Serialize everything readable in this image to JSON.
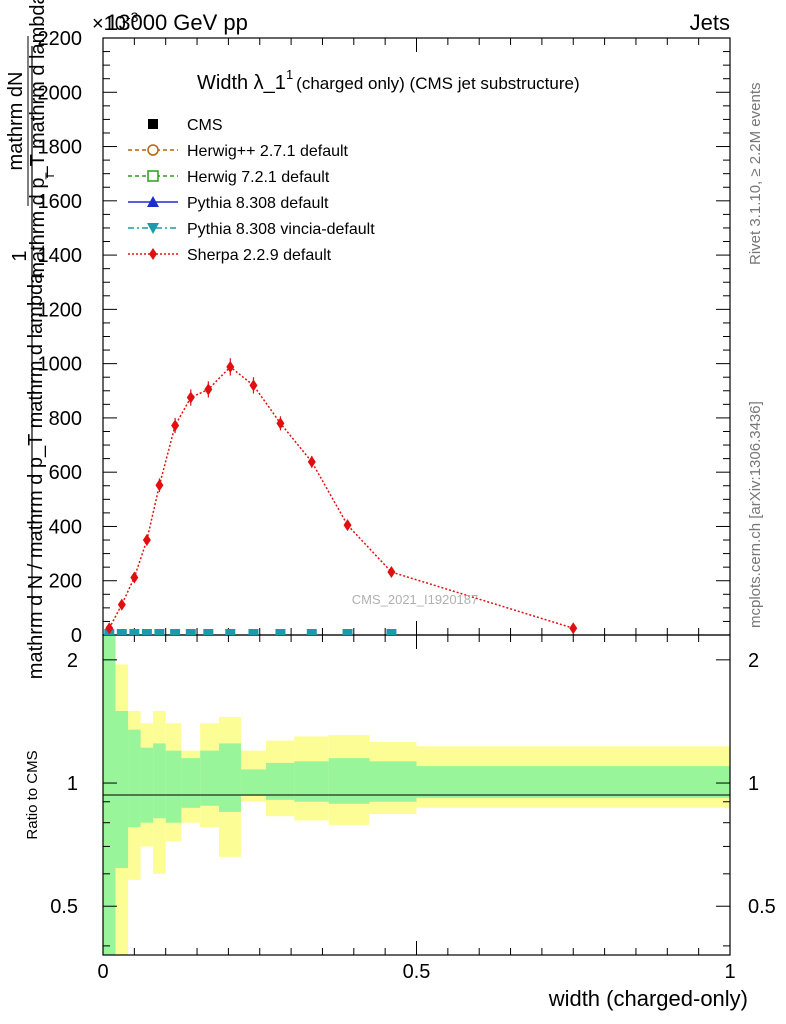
{
  "header": {
    "energy": "13000 GeV pp",
    "process": "Jets",
    "exponent": "×10",
    "exponent_power": "-3"
  },
  "side_text": {
    "rivet": "Rivet 3.1.10, ≥ 2.2M events",
    "mcplots": "mcplots.cern.ch [arXiv:1306.3436]"
  },
  "chart_data": {
    "type": "scatter",
    "title": "Width λ_1",
    "title_superscript": "1",
    "title_suffix": "(charged only) (CMS jet substructure)",
    "watermark": "CMS_2021_I1920187",
    "ylabel_top_num": "mathrm dN",
    "ylabel_top_den": "mathrm d p_T mathrm d lambda",
    "ylabel_sub_T": "T",
    "ylabel_one": "1",
    "ylabel_bottom_den": "mathrm d N / mathrm d p_T mathrm d lambda",
    "xlabel": "width (charged-only)",
    "ratio_ylabel": "Ratio to CMS",
    "xlim": [
      0,
      1
    ],
    "ylim": [
      0,
      2200
    ],
    "ratio_ylim": [
      0.38,
      2.3
    ],
    "x_ticks": [
      {
        "v": 0,
        "label": "0"
      },
      {
        "v": 0.5,
        "label": "0.5"
      },
      {
        "v": 1,
        "label": "1"
      }
    ],
    "y_ticks": [
      {
        "v": 0,
        "label": "0"
      },
      {
        "v": 200,
        "label": "200"
      },
      {
        "v": 400,
        "label": "400"
      },
      {
        "v": 600,
        "label": "600"
      },
      {
        "v": 800,
        "label": "800"
      },
      {
        "v": 1000,
        "label": "1000"
      },
      {
        "v": 1200,
        "label": "1200"
      },
      {
        "v": 1400,
        "label": "1400"
      },
      {
        "v": 1600,
        "label": "1600"
      },
      {
        "v": 1800,
        "label": "1800"
      },
      {
        "v": 2000,
        "label": "2000"
      },
      {
        "v": 2200,
        "label": "2200"
      }
    ],
    "ratio_ticks": [
      {
        "v": 0.5,
        "label": "0.5"
      },
      {
        "v": 1,
        "label": "1"
      },
      {
        "v": 2,
        "label": "2"
      }
    ],
    "legend": [
      {
        "name": "CMS",
        "color": "#000000",
        "marker": "square-filled",
        "line": "none"
      },
      {
        "name": "Herwig++ 2.7.1 default",
        "color": "#b8640a",
        "marker": "circle-open",
        "line": "dashed"
      },
      {
        "name": "Herwig 7.2.1 default",
        "color": "#2e9a1e",
        "marker": "square-open",
        "line": "dashed"
      },
      {
        "name": "Pythia 8.308 default",
        "color": "#1b2ec8",
        "marker": "triangle-up",
        "line": "solid"
      },
      {
        "name": "Pythia 8.308 vincia-default",
        "color": "#1a9aaa",
        "marker": "triangle-down",
        "line": "dashdot"
      },
      {
        "name": "Sherpa 2.2.9 default",
        "color": "#e01010",
        "marker": "diamond",
        "line": "dotted"
      }
    ],
    "series": [
      {
        "name": "Sherpa 2.2.9 default",
        "color": "#e01010",
        "x": [
          0.01,
          0.03,
          0.05,
          0.07,
          0.09,
          0.115,
          0.14,
          0.168,
          0.203,
          0.24,
          0.283,
          0.333,
          0.39,
          0.46,
          0.75
        ],
        "y": [
          25,
          112,
          212,
          350,
          552,
          772,
          875,
          905,
          988,
          920,
          780,
          638,
          405,
          232,
          25
        ],
        "err": [
          8,
          12,
          15,
          20,
          25,
          28,
          30,
          30,
          32,
          30,
          26,
          22,
          18,
          12,
          8
        ]
      }
    ],
    "ratio_bands": [
      {
        "x0": 0.0,
        "x1": 0.02,
        "g_lo": 0.38,
        "g_hi": 2.3,
        "y_lo": 0.38,
        "y_hi": 2.3
      },
      {
        "x0": 0.02,
        "x1": 0.04,
        "g_lo": 0.62,
        "g_hi": 1.5,
        "y_lo": 0.38,
        "y_hi": 1.95
      },
      {
        "x0": 0.04,
        "x1": 0.06,
        "g_lo": 0.78,
        "g_hi": 1.35,
        "y_lo": 0.58,
        "y_hi": 1.5
      },
      {
        "x0": 0.06,
        "x1": 0.08,
        "g_lo": 0.8,
        "g_hi": 1.22,
        "y_lo": 0.7,
        "y_hi": 1.4
      },
      {
        "x0": 0.08,
        "x1": 0.1,
        "g_lo": 0.82,
        "g_hi": 1.25,
        "y_lo": 0.6,
        "y_hi": 1.5
      },
      {
        "x0": 0.1,
        "x1": 0.125,
        "g_lo": 0.8,
        "g_hi": 1.2,
        "y_lo": 0.72,
        "y_hi": 1.4
      },
      {
        "x0": 0.125,
        "x1": 0.155,
        "g_lo": 0.87,
        "g_hi": 1.15,
        "y_lo": 0.8,
        "y_hi": 1.2
      },
      {
        "x0": 0.155,
        "x1": 0.185,
        "g_lo": 0.88,
        "g_hi": 1.2,
        "y_lo": 0.78,
        "y_hi": 1.4
      },
      {
        "x0": 0.185,
        "x1": 0.22,
        "g_lo": 0.85,
        "g_hi": 1.25,
        "y_lo": 0.66,
        "y_hi": 1.45
      },
      {
        "x0": 0.22,
        "x1": 0.26,
        "g_lo": 0.93,
        "g_hi": 1.08,
        "y_lo": 0.9,
        "y_hi": 1.2
      },
      {
        "x0": 0.26,
        "x1": 0.305,
        "g_lo": 0.91,
        "g_hi": 1.12,
        "y_lo": 0.83,
        "y_hi": 1.27
      },
      {
        "x0": 0.305,
        "x1": 0.36,
        "g_lo": 0.9,
        "g_hi": 1.13,
        "y_lo": 0.81,
        "y_hi": 1.3
      },
      {
        "x0": 0.36,
        "x1": 0.425,
        "g_lo": 0.89,
        "g_hi": 1.15,
        "y_lo": 0.79,
        "y_hi": 1.31
      },
      {
        "x0": 0.425,
        "x1": 0.5,
        "g_lo": 0.9,
        "g_hi": 1.13,
        "y_lo": 0.84,
        "y_hi": 1.26
      },
      {
        "x0": 0.5,
        "x1": 1.0,
        "g_lo": 0.92,
        "g_hi": 1.1,
        "y_lo": 0.87,
        "y_hi": 1.23
      }
    ],
    "mc_baseline_markers_x": [
      0.01,
      0.03,
      0.05,
      0.07,
      0.09,
      0.115,
      0.14,
      0.168,
      0.203,
      0.24,
      0.283,
      0.333,
      0.39,
      0.46
    ]
  }
}
